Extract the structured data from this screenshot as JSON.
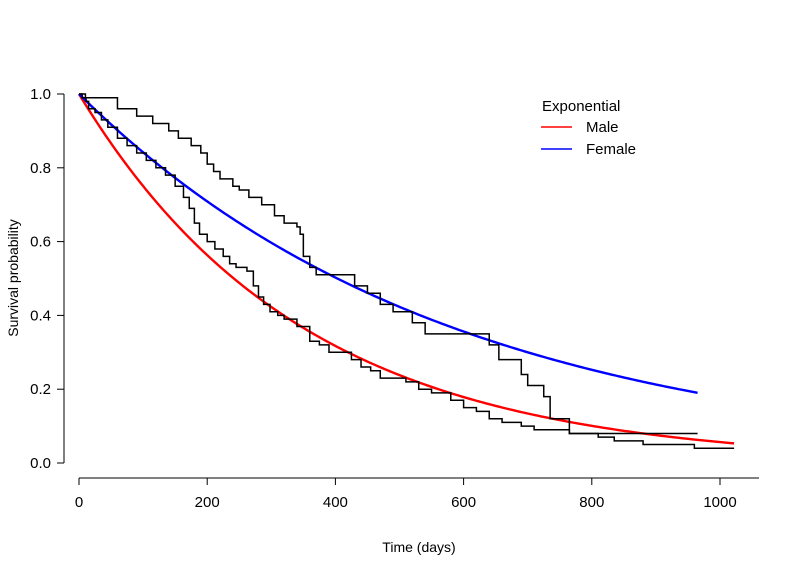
{
  "chart_data": {
    "type": "line",
    "title": "",
    "xlabel": "Time (days)",
    "ylabel": "Survival probability",
    "xlim": [
      0,
      1050
    ],
    "ylim": [
      -0.02,
      1.0
    ],
    "xticks": [
      0,
      200,
      400,
      600,
      800,
      1000
    ],
    "yticks": [
      0.0,
      0.2,
      0.4,
      0.6,
      0.8,
      1.0
    ],
    "xtick_labels": [
      "0",
      "200",
      "400",
      "600",
      "800",
      "1000"
    ],
    "ytick_labels": [
      "0.0",
      "0.2",
      "0.4",
      "0.6",
      "0.8",
      "1.0"
    ],
    "grid": false,
    "legend": {
      "title": "Exponential",
      "placement": "top-right",
      "entries": [
        {
          "label": "Male",
          "color": "#ff0000"
        },
        {
          "label": "Female",
          "color": "#0000ff"
        }
      ]
    },
    "series": [
      {
        "name": "Male",
        "kind": "exponential-fit",
        "color": "#ff0000",
        "rate": 0.00287,
        "x_range": [
          0,
          1022
        ]
      },
      {
        "name": "Female",
        "kind": "exponential-fit",
        "color": "#0000ff",
        "rate": 0.00172,
        "x_range": [
          0,
          965
        ]
      },
      {
        "kind": "kaplan-meier",
        "color": "#000000",
        "steps": [
          [
            0,
            1.0
          ],
          [
            5,
            0.99
          ],
          [
            11,
            0.98
          ],
          [
            15,
            0.96
          ],
          [
            25,
            0.95
          ],
          [
            35,
            0.93
          ],
          [
            45,
            0.91
          ],
          [
            60,
            0.88
          ],
          [
            75,
            0.86
          ],
          [
            90,
            0.84
          ],
          [
            105,
            0.82
          ],
          [
            120,
            0.8
          ],
          [
            135,
            0.78
          ],
          [
            150,
            0.75
          ],
          [
            163,
            0.72
          ],
          [
            172,
            0.69
          ],
          [
            180,
            0.65
          ],
          [
            188,
            0.62
          ],
          [
            200,
            0.6
          ],
          [
            212,
            0.58
          ],
          [
            225,
            0.56
          ],
          [
            235,
            0.54
          ],
          [
            245,
            0.53
          ],
          [
            262,
            0.52
          ],
          [
            272,
            0.48
          ],
          [
            280,
            0.45
          ],
          [
            288,
            0.43
          ],
          [
            298,
            0.41
          ],
          [
            310,
            0.4
          ],
          [
            320,
            0.39
          ],
          [
            340,
            0.37
          ],
          [
            360,
            0.33
          ],
          [
            375,
            0.32
          ],
          [
            390,
            0.3
          ],
          [
            425,
            0.28
          ],
          [
            440,
            0.26
          ],
          [
            455,
            0.25
          ],
          [
            470,
            0.23
          ],
          [
            510,
            0.22
          ],
          [
            530,
            0.2
          ],
          [
            550,
            0.19
          ],
          [
            580,
            0.17
          ],
          [
            600,
            0.15
          ],
          [
            620,
            0.14
          ],
          [
            640,
            0.12
          ],
          [
            660,
            0.11
          ],
          [
            690,
            0.1
          ],
          [
            710,
            0.09
          ],
          [
            765,
            0.08
          ],
          [
            810,
            0.07
          ],
          [
            835,
            0.06
          ],
          [
            880,
            0.05
          ],
          [
            960,
            0.04
          ],
          [
            1022,
            0.04
          ]
        ]
      },
      {
        "kind": "kaplan-meier",
        "color": "#000000",
        "steps": [
          [
            0,
            1.0
          ],
          [
            10,
            0.99
          ],
          [
            60,
            0.96
          ],
          [
            90,
            0.94
          ],
          [
            115,
            0.92
          ],
          [
            140,
            0.9
          ],
          [
            155,
            0.88
          ],
          [
            175,
            0.86
          ],
          [
            190,
            0.84
          ],
          [
            200,
            0.81
          ],
          [
            210,
            0.79
          ],
          [
            220,
            0.77
          ],
          [
            240,
            0.75
          ],
          [
            250,
            0.74
          ],
          [
            265,
            0.72
          ],
          [
            285,
            0.7
          ],
          [
            305,
            0.67
          ],
          [
            320,
            0.65
          ],
          [
            340,
            0.64
          ],
          [
            345,
            0.62
          ],
          [
            350,
            0.56
          ],
          [
            360,
            0.53
          ],
          [
            370,
            0.51
          ],
          [
            430,
            0.48
          ],
          [
            450,
            0.46
          ],
          [
            470,
            0.43
          ],
          [
            490,
            0.41
          ],
          [
            520,
            0.38
          ],
          [
            540,
            0.35
          ],
          [
            640,
            0.32
          ],
          [
            655,
            0.28
          ],
          [
            690,
            0.24
          ],
          [
            700,
            0.21
          ],
          [
            725,
            0.18
          ],
          [
            735,
            0.12
          ],
          [
            765,
            0.08
          ],
          [
            965,
            0.08
          ]
        ]
      }
    ]
  }
}
